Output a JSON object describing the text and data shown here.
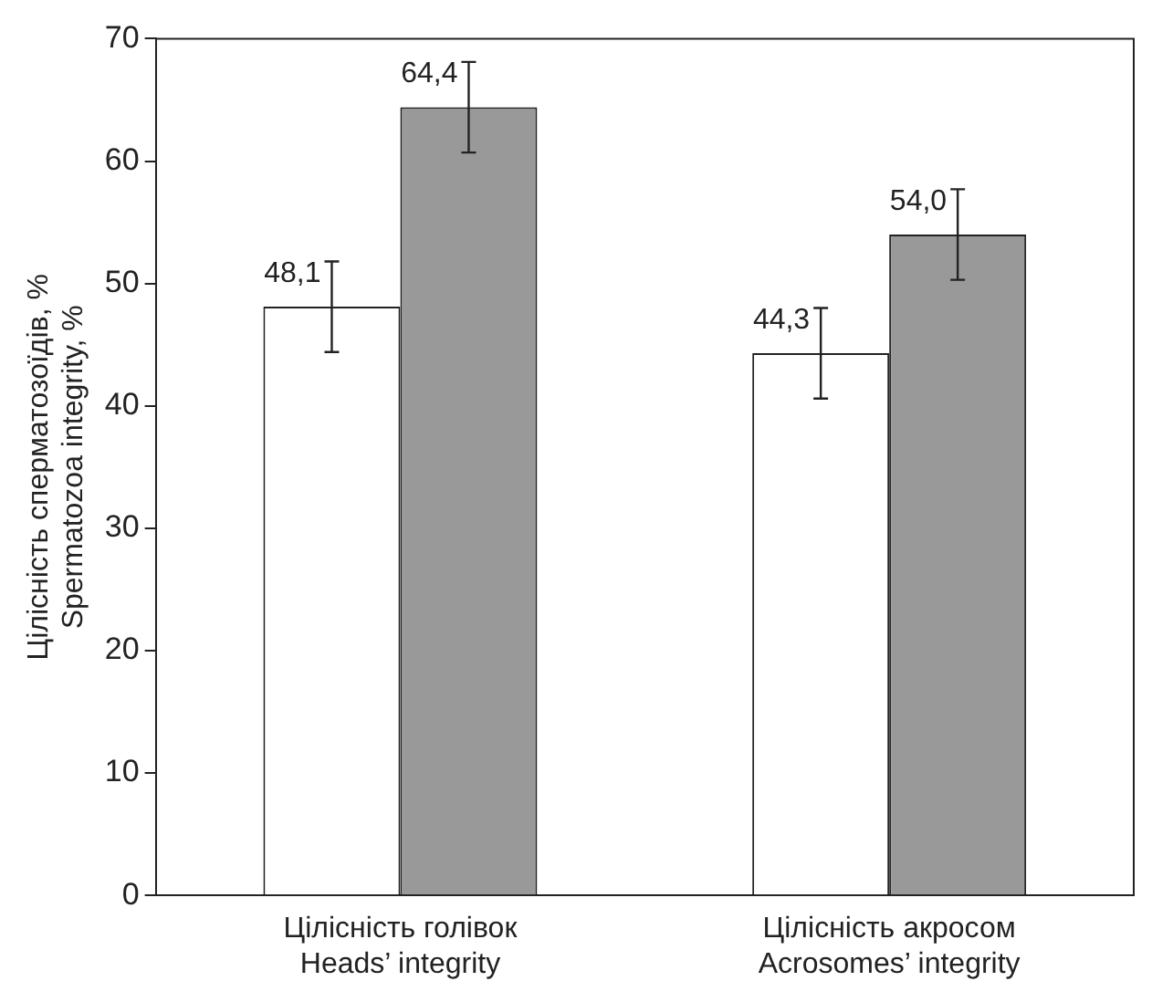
{
  "chart_data": {
    "type": "bar",
    "ylabel": "Цілісність сперматозоїдів, %\nSpermatozoa integrity, %",
    "categories": [
      "Цілісність голівок\nHeads’ integrity",
      "Цілісність акросом\nAcrosomes’ integrity"
    ],
    "series": [
      {
        "color": "#ffffff",
        "values": [
          48.1,
          44.3
        ],
        "errors": [
          3.7,
          3.7
        ],
        "value_labels": [
          "48,1",
          "44,3"
        ]
      },
      {
        "color": "#999999",
        "values": [
          64.4,
          54.0
        ],
        "errors": [
          3.7,
          3.7
        ],
        "value_labels": [
          "64,4",
          "54,0"
        ]
      }
    ],
    "ylim": [
      0,
      70
    ],
    "yticks": [
      0,
      10,
      20,
      30,
      40,
      50,
      60,
      70
    ],
    "grid": false,
    "legend": false
  }
}
